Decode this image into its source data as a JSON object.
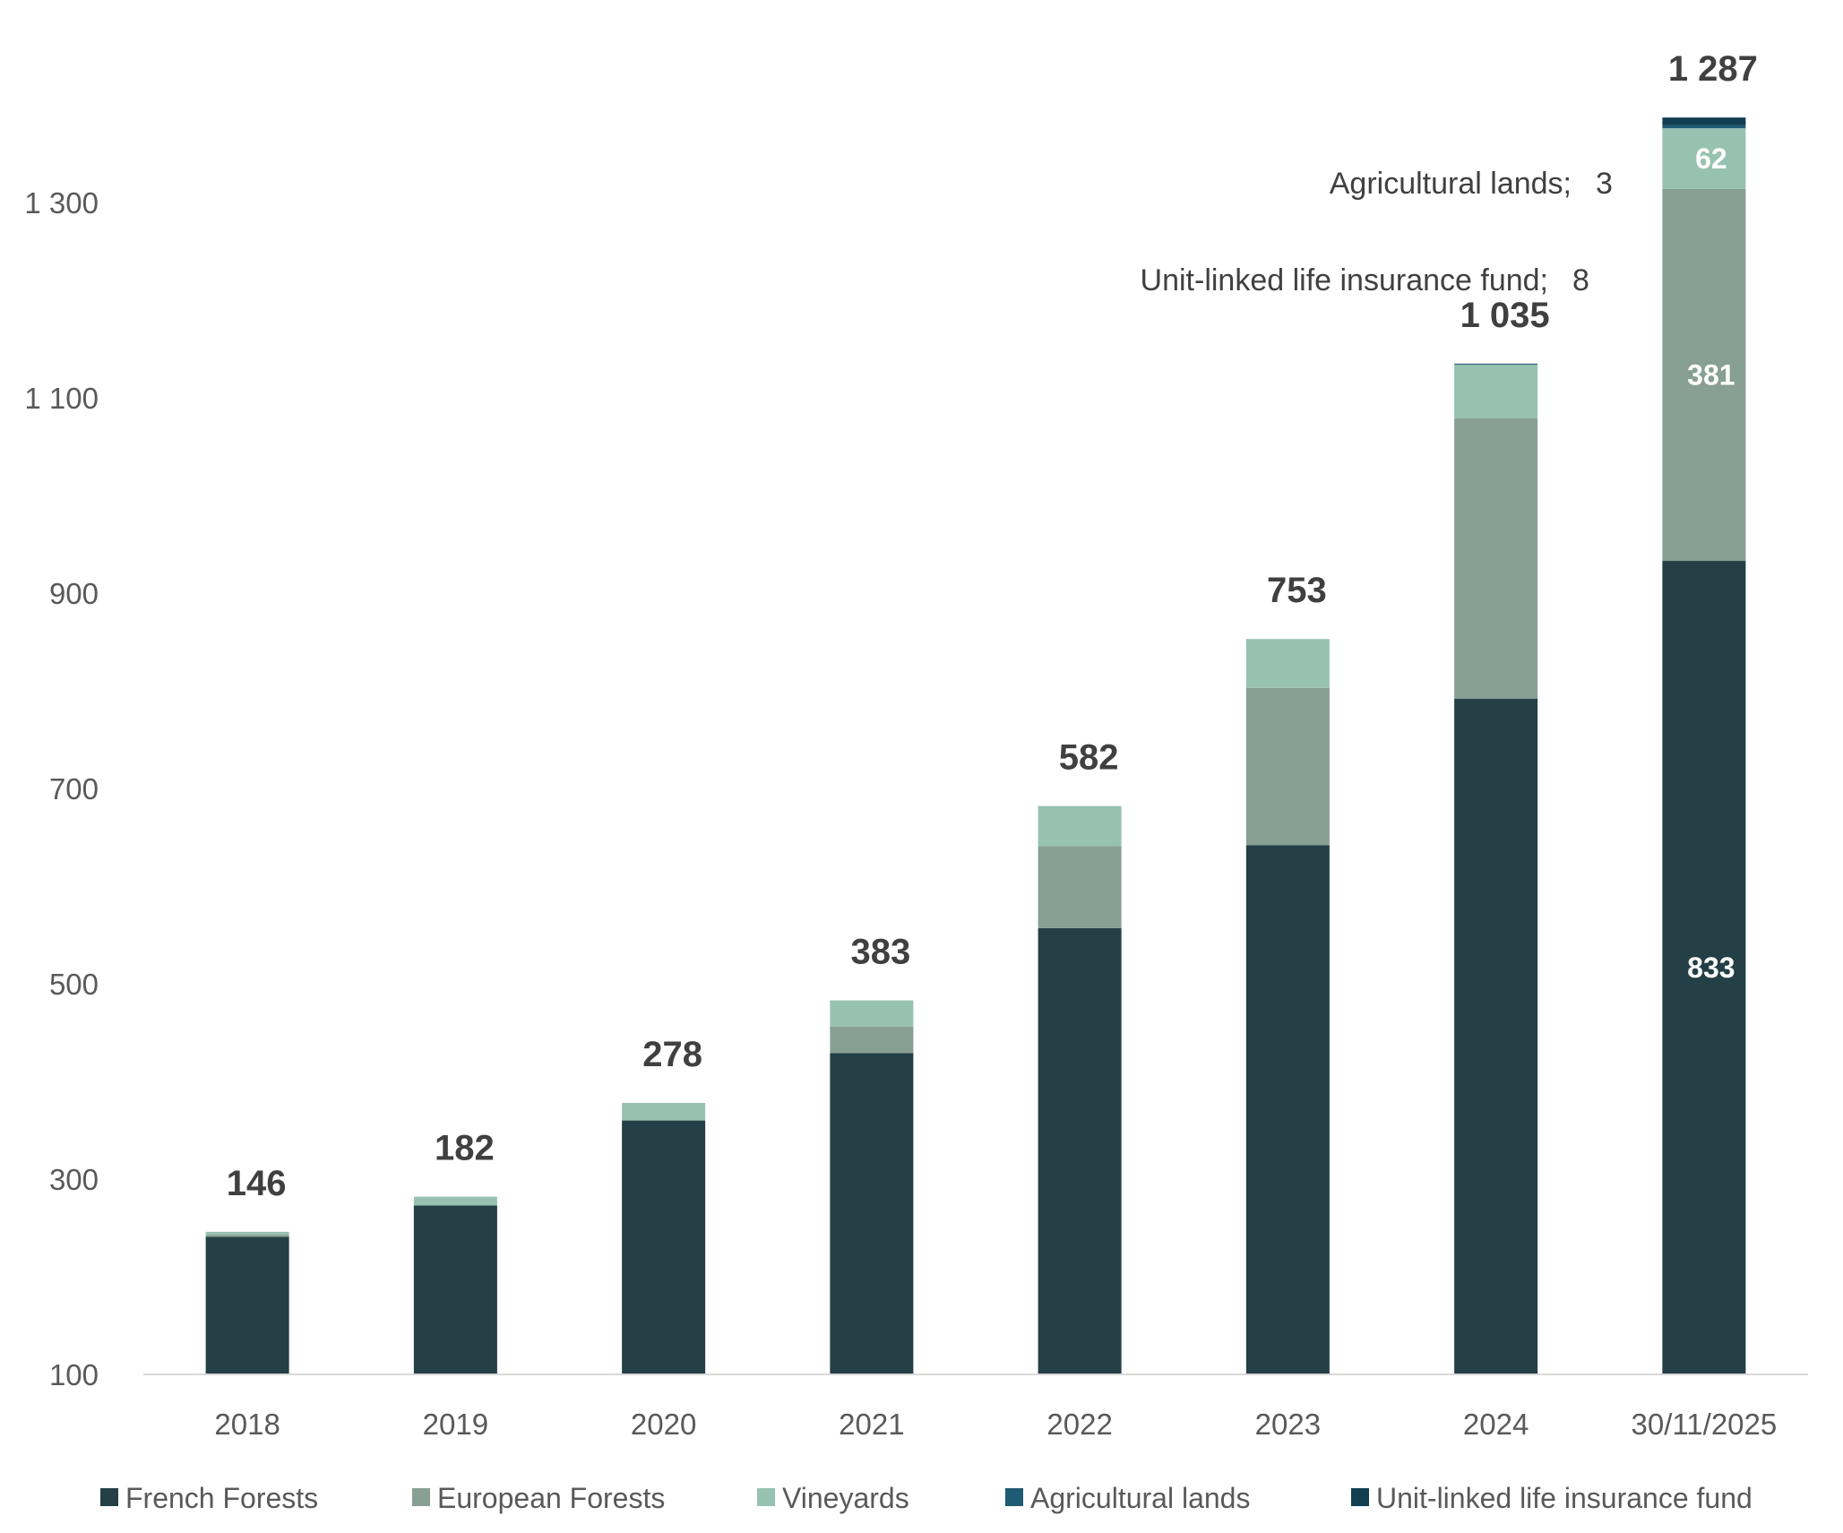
{
  "chart_data": {
    "type": "bar",
    "stacked": true,
    "title": "",
    "xlabel": "",
    "ylabel": "",
    "ylim": [
      100,
      1300
    ],
    "yticks": [
      100,
      300,
      500,
      700,
      900,
      1100,
      1300
    ],
    "ytick_labels": [
      "100",
      "300",
      "500",
      "700",
      "900",
      "1 100",
      "1 300"
    ],
    "categories": [
      "2018",
      "2019",
      "2020",
      "2021",
      "2022",
      "2023",
      "2024",
      "30/11/2025"
    ],
    "series": [
      {
        "name": "French Forests",
        "color": "#243F46",
        "values": [
          141,
          173,
          260,
          329,
          457,
          542,
          692,
          833
        ]
      },
      {
        "name": "European Forests",
        "color": "#889F93",
        "values": [
          2,
          0,
          0,
          27,
          84,
          161,
          287,
          381
        ]
      },
      {
        "name": "Vineyards",
        "color": "#97C1B0",
        "values": [
          3,
          9,
          18,
          27,
          41,
          50,
          55,
          62
        ]
      },
      {
        "name": "Agricultural lands",
        "color": "#1E5B74",
        "values": [
          0,
          0,
          0,
          0,
          0,
          0,
          1,
          3
        ]
      },
      {
        "name": "Unit-linked life insurance fund",
        "color": "#123E52",
        "values": [
          0,
          0,
          0,
          0,
          0,
          0,
          0,
          8
        ]
      }
    ],
    "totals": [
      146,
      182,
      278,
      383,
      582,
      753,
      1035,
      1287
    ],
    "total_labels": [
      "146",
      "182",
      "278",
      "383",
      "582",
      "753",
      "1 035",
      "1 287"
    ],
    "inner_labels": [
      {
        "category_index": 7,
        "series_index": 0,
        "text": "833"
      },
      {
        "category_index": 7,
        "series_index": 1,
        "text": "381"
      },
      {
        "category_index": 7,
        "series_index": 2,
        "text": "62"
      }
    ],
    "callouts": [
      {
        "name": "Agricultural lands;",
        "value": "3"
      },
      {
        "name": "Unit-linked life insurance fund;",
        "value": "8"
      }
    ],
    "legend": {
      "position": "bottom",
      "entries": [
        "French Forests",
        "European Forests",
        "Vineyards",
        "Agricultural lands",
        "Unit-linked life insurance fund"
      ]
    },
    "grid": false
  }
}
